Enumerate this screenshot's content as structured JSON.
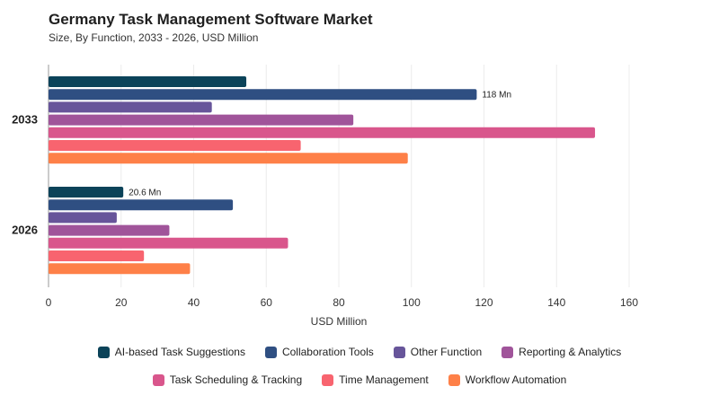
{
  "title": "Germany Task Management Software Market",
  "subtitle": "Size, By Function, 2033 - 2026, USD Million",
  "chart_data": {
    "type": "bar",
    "orientation": "horizontal",
    "categories": [
      "2033",
      "2026"
    ],
    "xlabel": "USD Million",
    "ylabel": "",
    "xlim": [
      0,
      160
    ],
    "xticks": [
      0,
      20,
      40,
      60,
      80,
      100,
      120,
      140,
      160
    ],
    "grid": true,
    "legend_position": "bottom",
    "series": [
      {
        "name": "AI-based Task Suggestions",
        "color": "#0b4359",
        "values": [
          54.5,
          20.6
        ]
      },
      {
        "name": "Collaboration Tools",
        "color": "#2f4f82",
        "values": [
          118,
          50.8
        ]
      },
      {
        "name": "Other Function",
        "color": "#67559a",
        "values": [
          45,
          18.8
        ]
      },
      {
        "name": "Reporting & Analytics",
        "color": "#a0549a",
        "values": [
          84,
          33.3
        ]
      },
      {
        "name": "Task Scheduling & Tracking",
        "color": "#d9568c",
        "values": [
          150.6,
          66
        ]
      },
      {
        "name": "Time Management",
        "color": "#f8646f",
        "values": [
          69.5,
          26.3
        ]
      },
      {
        "name": "Workflow Automation",
        "color": "#fe8048",
        "values": [
          99,
          39
        ]
      }
    ],
    "data_labels": [
      {
        "category": "2033",
        "series": "Collaboration Tools",
        "text": "118 Mn"
      },
      {
        "category": "2026",
        "series": "AI-based Task Suggestions",
        "text": "20.6 Mn"
      }
    ]
  }
}
